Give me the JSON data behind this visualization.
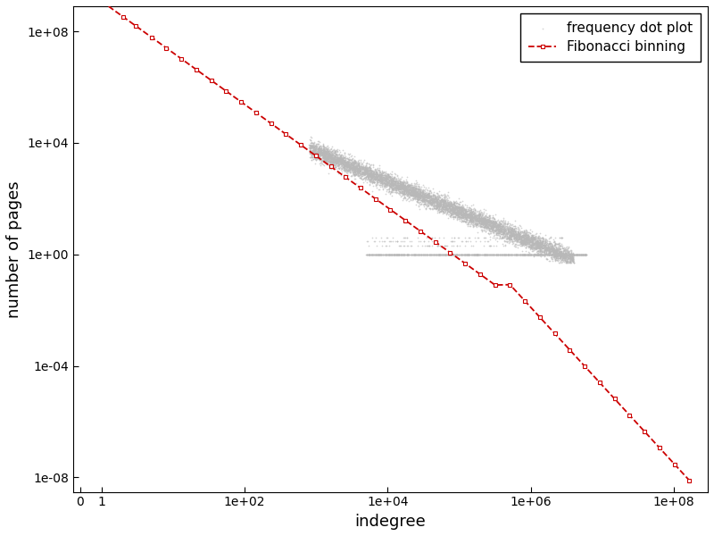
{
  "xlabel": "indegree",
  "ylabel": "number of pages",
  "scatter_color": "#b8b8b8",
  "scatter_alpha": 0.6,
  "scatter_size": 1.5,
  "line_color": "#cc0000",
  "line_style": "--",
  "marker_style": "s",
  "marker_size": 3,
  "marker_fc": "none",
  "legend_labels": [
    "frequency dot plot",
    "Fibonacci binning"
  ],
  "background_color": "#ffffff",
  "x_ticks": [
    0.5,
    1,
    100,
    10000,
    1000000,
    100000000
  ],
  "x_labels": [
    "0",
    "1",
    "1e+02",
    "1e+04",
    "1e+06",
    "1e+08"
  ],
  "y_ticks": [
    1e-08,
    0.0001,
    1.0,
    10000.0,
    100000000.0
  ],
  "y_labels": [
    "1e-08",
    "1e-04",
    "1e+00",
    "1e+04",
    "1e+08"
  ],
  "xlim": [
    0.4,
    300000000.0
  ],
  "ylim": [
    3e-09,
    800000000.0
  ]
}
